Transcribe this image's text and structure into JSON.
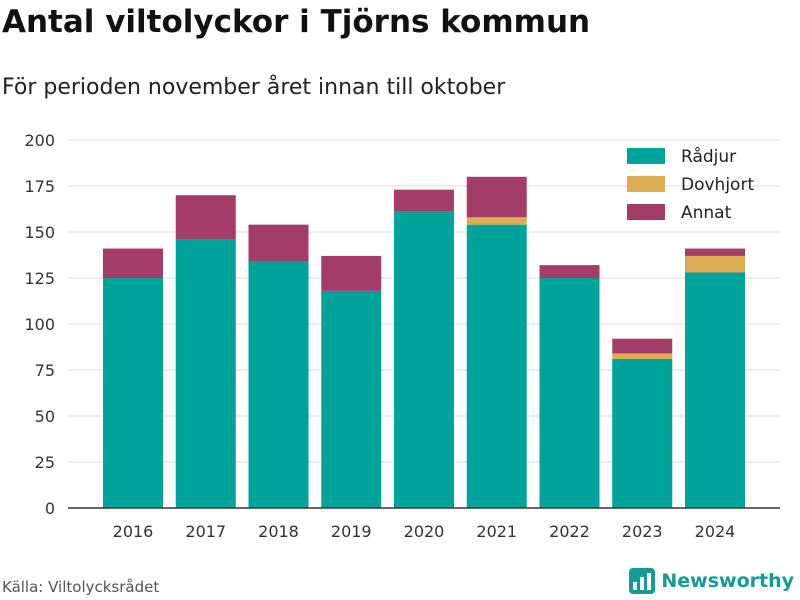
{
  "title": "Antal viltolyckor i Tjörns kommun",
  "subtitle": "För perioden november året innan till oktober",
  "source": "Källa: Viltolycksrådet",
  "brand": "Newsworthy",
  "colors": {
    "Rådjur": "#00a39b",
    "Dovhjort": "#dbac55",
    "Annat": "#a33d67",
    "grid": "#dddddd",
    "axis": "#333333",
    "brand": "#139b96"
  },
  "chart_data": {
    "type": "bar",
    "stacked": true,
    "categories": [
      "2016",
      "2017",
      "2018",
      "2019",
      "2020",
      "2021",
      "2022",
      "2023",
      "2024"
    ],
    "series": [
      {
        "name": "Rådjur",
        "values": [
          125,
          146,
          134,
          118,
          161,
          154,
          125,
          81,
          128
        ]
      },
      {
        "name": "Dovhjort",
        "values": [
          0,
          0,
          0,
          0,
          0,
          4,
          0,
          3,
          9
        ]
      },
      {
        "name": "Annat",
        "values": [
          16,
          24,
          20,
          19,
          12,
          22,
          7,
          8,
          4
        ]
      }
    ],
    "ylim": [
      0,
      200
    ],
    "yticks": [
      0,
      25,
      50,
      75,
      100,
      125,
      150,
      175,
      200
    ],
    "grid": true,
    "legend_position": "top-right"
  }
}
